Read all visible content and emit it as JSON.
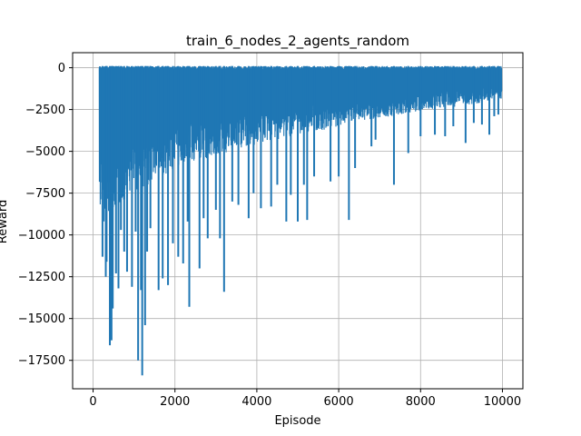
{
  "chart_data": {
    "type": "line",
    "title": "train_6_nodes_2_agents_random",
    "xlabel": "Episode",
    "ylabel": "Reward",
    "xlim": [
      -500,
      10500
    ],
    "ylim": [
      -19200,
      900
    ],
    "grid": true,
    "line_color": "#1f77b4",
    "x_ticks": [
      0,
      2000,
      4000,
      6000,
      8000,
      10000
    ],
    "x_tick_labels": [
      "0",
      "2000",
      "4000",
      "6000",
      "8000",
      "10000"
    ],
    "y_ticks": [
      0,
      -2500,
      -5000,
      -7500,
      -10000,
      -12500,
      -15000,
      -17500
    ],
    "y_tick_labels": [
      "0",
      "−2500",
      "−5000",
      "−7500",
      "−10000",
      "−12500",
      "−15000",
      "−17500"
    ],
    "series": [
      {
        "x_range": [
          150,
          9980
        ],
        "upper_value": 100,
        "dense_floor": [
          [
            150,
            -8500
          ],
          [
            300,
            -9500
          ],
          [
            500,
            -8800
          ],
          [
            800,
            -7800
          ],
          [
            1200,
            -7200
          ],
          [
            1600,
            -6600
          ],
          [
            2000,
            -6000
          ],
          [
            2500,
            -5600
          ],
          [
            3000,
            -5300
          ],
          [
            3500,
            -5000
          ],
          [
            4000,
            -4600
          ],
          [
            4500,
            -4300
          ],
          [
            5000,
            -4000
          ],
          [
            5500,
            -3800
          ],
          [
            6000,
            -3500
          ],
          [
            6500,
            -3200
          ],
          [
            7000,
            -3000
          ],
          [
            7500,
            -2800
          ],
          [
            8000,
            -2600
          ],
          [
            8500,
            -2400
          ],
          [
            9000,
            -2300
          ],
          [
            9500,
            -2100
          ],
          [
            9980,
            -1900
          ]
        ],
        "spikes": [
          [
            230,
            -11300
          ],
          [
            310,
            -12500
          ],
          [
            330,
            -11600
          ],
          [
            410,
            -16600
          ],
          [
            450,
            -16300
          ],
          [
            480,
            -14400
          ],
          [
            560,
            -12300
          ],
          [
            620,
            -13200
          ],
          [
            680,
            -9700
          ],
          [
            760,
            -11000
          ],
          [
            830,
            -12200
          ],
          [
            950,
            -13100
          ],
          [
            1040,
            -9800
          ],
          [
            1100,
            -17500
          ],
          [
            1170,
            -13300
          ],
          [
            1200,
            -18400
          ],
          [
            1270,
            -15400
          ],
          [
            1320,
            -11000
          ],
          [
            1400,
            -9600
          ],
          [
            1600,
            -13300
          ],
          [
            1700,
            -12600
          ],
          [
            1830,
            -13000
          ],
          [
            1950,
            -10500
          ],
          [
            2080,
            -11300
          ],
          [
            2200,
            -11700
          ],
          [
            2310,
            -9200
          ],
          [
            2350,
            -14300
          ],
          [
            2600,
            -12000
          ],
          [
            2700,
            -9000
          ],
          [
            2800,
            -10200
          ],
          [
            3000,
            -8500
          ],
          [
            3100,
            -10200
          ],
          [
            3200,
            -13400
          ],
          [
            3400,
            -8000
          ],
          [
            3550,
            -8200
          ],
          [
            3800,
            -9000
          ],
          [
            3920,
            -7500
          ],
          [
            4100,
            -8400
          ],
          [
            4350,
            -8300
          ],
          [
            4500,
            -7000
          ],
          [
            4720,
            -9200
          ],
          [
            4830,
            -7600
          ],
          [
            5000,
            -9200
          ],
          [
            5150,
            -7000
          ],
          [
            5230,
            -9100
          ],
          [
            5400,
            -6500
          ],
          [
            5800,
            -6800
          ],
          [
            6000,
            -6500
          ],
          [
            6250,
            -9100
          ],
          [
            6400,
            -6000
          ],
          [
            6800,
            -4700
          ],
          [
            6900,
            -4300
          ],
          [
            7350,
            -7000
          ],
          [
            7700,
            -5100
          ],
          [
            8000,
            -4100
          ],
          [
            8350,
            -4000
          ],
          [
            8600,
            -4100
          ],
          [
            8800,
            -3500
          ],
          [
            9100,
            -4500
          ],
          [
            9300,
            -3300
          ],
          [
            9500,
            -3400
          ],
          [
            9680,
            -4000
          ],
          [
            9800,
            -2900
          ],
          [
            9900,
            -2800
          ]
        ]
      }
    ]
  }
}
